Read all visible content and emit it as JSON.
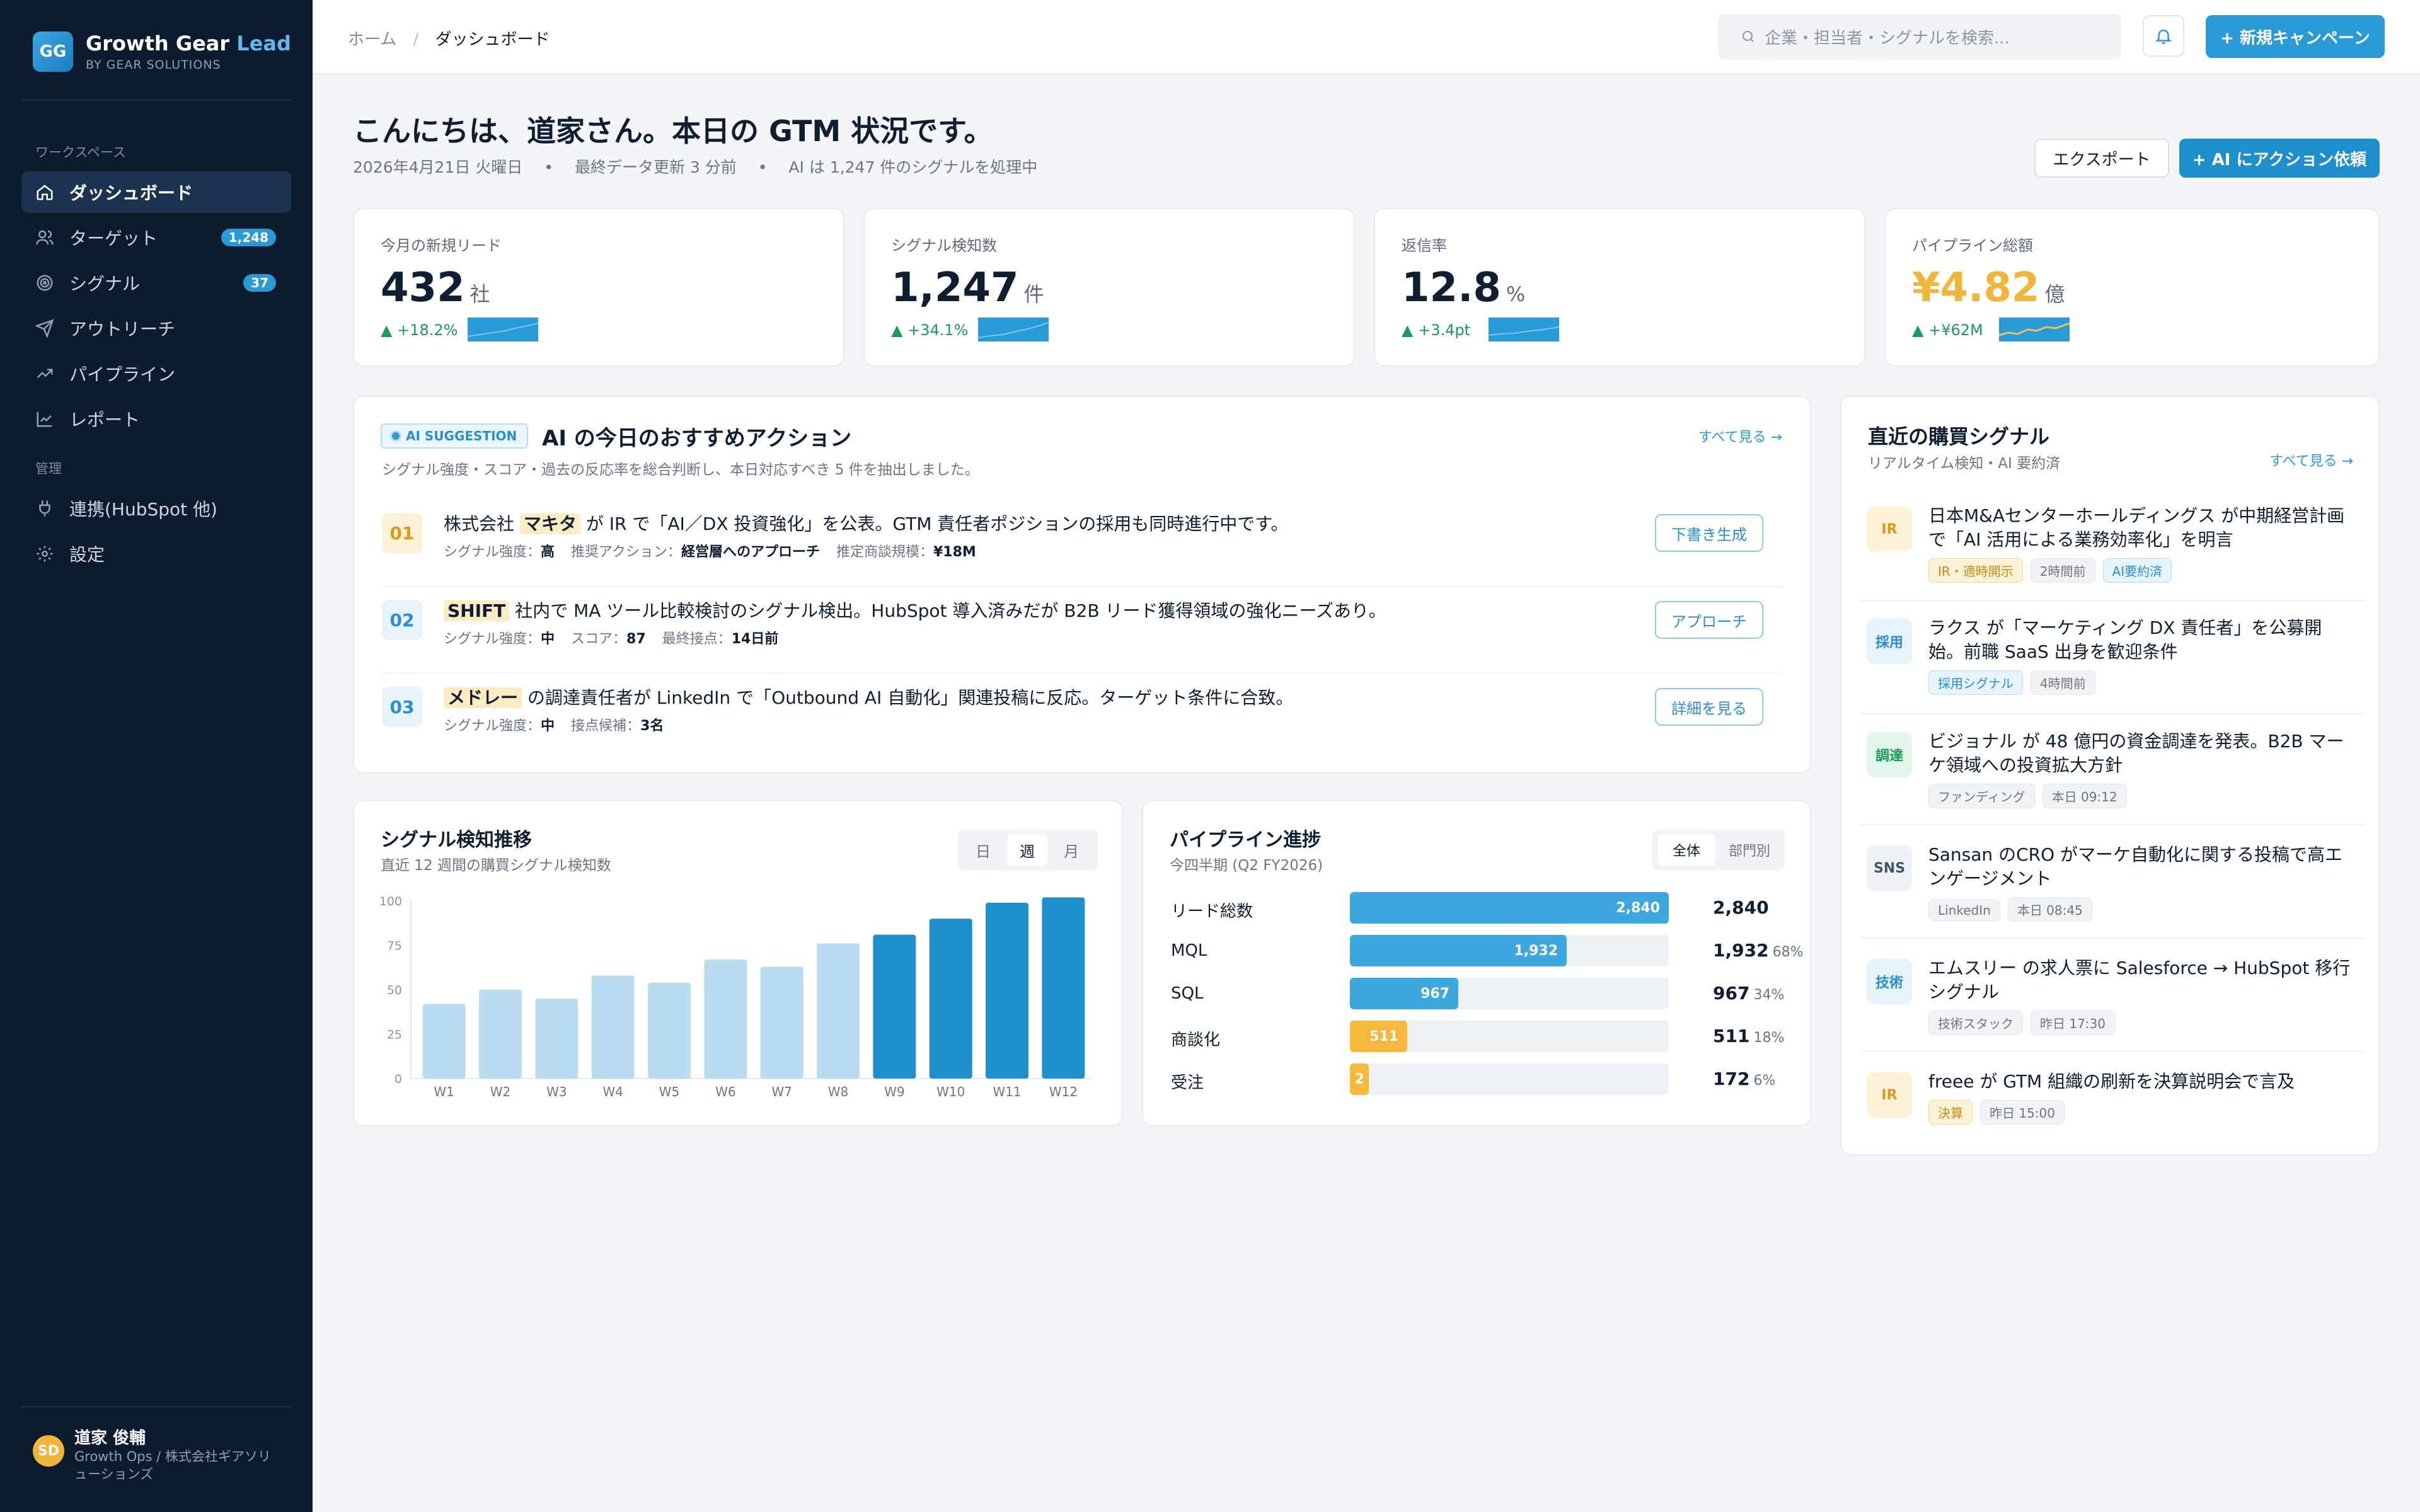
{
  "brand": {
    "logo": "GG",
    "name": "Growth Gear ",
    "name_accent": "Lead",
    "sub": "BY GEAR SOLUTIONS"
  },
  "nav": {
    "section_workspace": "ワークスペース",
    "section_admin": "管理",
    "items": [
      {
        "label": "ダッシュボード",
        "icon": "home-icon",
        "active": true
      },
      {
        "label": "ターゲット",
        "icon": "users-icon",
        "badge": "1,248"
      },
      {
        "label": "シグナル",
        "icon": "target-icon",
        "badge": "37"
      },
      {
        "label": "アウトリーチ",
        "icon": "send-icon"
      },
      {
        "label": "パイプライン",
        "icon": "trend-icon"
      },
      {
        "label": "レポート",
        "icon": "chart-icon"
      }
    ],
    "admin_items": [
      {
        "label": "連携(HubSpot 他)",
        "icon": "plug-icon"
      },
      {
        "label": "設定",
        "icon": "gear-icon"
      }
    ]
  },
  "user": {
    "initials": "SD",
    "name": "道家 俊輔",
    "role": "Growth Ops / 株式会社ギアソリューションズ"
  },
  "topbar": {
    "breadcrumb_home": "ホーム",
    "breadcrumb_sep": "/",
    "breadcrumb_current": "ダッシュボード",
    "search_placeholder": "企業・担当者・シグナルを検索...",
    "new_campaign": "+ 新規キャンペーン"
  },
  "header": {
    "greeting": "こんにちは、道家さん。本日の GTM 状況です。",
    "date": "2026年4月21日 火曜日",
    "updated": "最終データ更新 3 分前",
    "ai_processed": "AI は 1,247 件のシグナルを処理中",
    "dot": "•",
    "export": "エクスポート",
    "ai_action": "+ AI にアクション依頼"
  },
  "kpis": [
    {
      "label": "今月の新規リード",
      "value": "432",
      "unit": "社",
      "delta": "▲ +18.2%"
    },
    {
      "label": "シグナル検知数",
      "value": "1,247",
      "unit": "件",
      "delta": "▲ +34.1%"
    },
    {
      "label": "返信率",
      "value": "12.8",
      "unit": "%",
      "delta": "▲ +3.4pt"
    },
    {
      "label": "パイプライン総額",
      "value": "¥4.82",
      "unit": "億",
      "delta": "▲ +¥62M",
      "color": "#f2b53b"
    }
  ],
  "suggestions": {
    "badge": "AI SUGGESTION",
    "title": "AI の今日のおすすめアクション",
    "see_all": "すべて見る →",
    "sub": "シグナル強度・スコア・過去の反応率を総合判断し、本日対応すべき 5 件を抽出しました。",
    "items": [
      {
        "num": "01",
        "pre": "株式会社",
        "hl": "マキタ",
        "post": "が IR で「AI／DX 投資強化」を公表。GTM 責任者ポジションの採用も同時進行中です。",
        "m1l": "シグナル強度：",
        "m1v": "高",
        "m2l": "推奨アクション：",
        "m2v": "経営層へのアプローチ",
        "m3l": "推定商談規模：",
        "m3v": "¥18M",
        "action": "下書き生成"
      },
      {
        "num": "02",
        "pre": "",
        "hl": "SHIFT",
        "post": "社内で MA ツール比較検討のシグナル検出。HubSpot 導入済みだが B2B リード獲得領域の強化ニーズあり。",
        "m1l": "シグナル強度：",
        "m1v": "中",
        "m2l": "スコア：",
        "m2v": "87",
        "m3l": "最終接点：",
        "m3v": "14日前",
        "action": "アプローチ"
      },
      {
        "num": "03",
        "pre": "",
        "hl": "メドレー",
        "post": "の調達責任者が LinkedIn で「Outbound AI 自動化」関連投稿に反応。ターゲット条件に合致。",
        "m1l": "シグナル強度：",
        "m1v": "中",
        "m2l": "接点候補：",
        "m2v": "3名",
        "m3l": "",
        "m3v": "",
        "action": "詳細を見る"
      }
    ]
  },
  "signals": {
    "title": "直近の購買シグナル",
    "sub": "リアルタイム検知・AI 要約済",
    "see_all": "すべて見る →",
    "items": [
      {
        "tag": "IR",
        "text": "日本M&Aセンターホールディングス が中期経営計画で「AI 活用による業務効率化」を明言",
        "pills": [
          "IR・適時開示",
          "2時間前",
          "AI要約済"
        ]
      },
      {
        "tag": "採用",
        "text": "ラクス が「マーケティング DX 責任者」を公募開始。前職 SaaS 出身を歓迎条件",
        "pills": [
          "採用シグナル",
          "4時間前"
        ]
      },
      {
        "tag": "調達",
        "text": "ビジョナル が 48 億円の資金調達を発表。B2B マーケ領域への投資拡大方針",
        "pills": [
          "ファンディング",
          "本日 09:12"
        ]
      },
      {
        "tag": "SNS",
        "text": "Sansan のCRO がマーケ自動化に関する投稿で高エンゲージメント",
        "pills": [
          "LinkedIn",
          "本日 08:45"
        ]
      },
      {
        "tag": "技術",
        "text": "エムスリー の求人票に Salesforce → HubSpot 移行シグナル",
        "pills": [
          "技術スタック",
          "昨日 17:30"
        ]
      },
      {
        "tag": "IR",
        "text": "freee が GTM 組織の刷新を決算説明会で言及",
        "pills": [
          "決算",
          "昨日 15:00"
        ]
      }
    ]
  },
  "signal_chart": {
    "title": "シグナル検知推移",
    "sub": "直近 12 週間の購買シグナル検知数",
    "tabs": [
      "日",
      "週",
      "月"
    ],
    "active_tab": "週"
  },
  "chart_data": {
    "type": "bar",
    "categories": [
      "W1",
      "W2",
      "W3",
      "W4",
      "W5",
      "W6",
      "W7",
      "W8",
      "W9",
      "W10",
      "W11",
      "W12"
    ],
    "values": [
      42,
      50,
      45,
      58,
      54,
      67,
      63,
      76,
      81,
      90,
      99,
      102
    ],
    "ylim": [
      0,
      100
    ],
    "yticks": [
      0,
      25,
      50,
      75,
      100
    ],
    "colors": {
      "light": "#b9dcf0",
      "dark": "#1f8fcb"
    }
  },
  "pipeline": {
    "title": "パイプライン進捗",
    "sub": "今四半期 (Q2 FY2026)",
    "tabs": [
      "全体",
      "部門別"
    ],
    "active_tab": "全体",
    "rows": [
      {
        "label": "リード総数",
        "value": "2,840",
        "fraction": 1.0,
        "pct": "",
        "color": "#3ea7df"
      },
      {
        "label": "MQL",
        "value": "1,932",
        "fraction": 0.68,
        "pct": "68%",
        "color": "#3ea7df"
      },
      {
        "label": "SQL",
        "value": "967",
        "fraction": 0.34,
        "pct": "34%",
        "color": "#3ea7df"
      },
      {
        "label": "商談化",
        "value": "511",
        "fraction": 0.18,
        "pct": "18%",
        "color": "#f5b83a"
      },
      {
        "label": "受注",
        "value": "172",
        "fraction": 0.06,
        "pct": "6%",
        "bar_label": "2",
        "color": "#f5b83a"
      }
    ]
  }
}
